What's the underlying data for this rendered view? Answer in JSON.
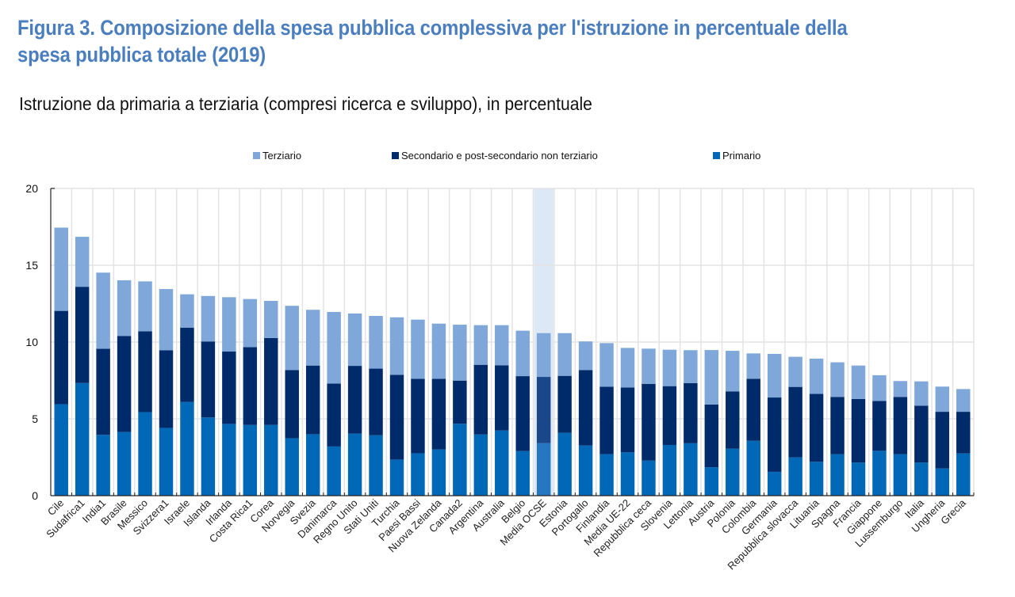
{
  "header": {
    "title": "Figura 3. Composizione della spesa pubblica complessiva per l'istruzione in percentuale della spesa pubblica totale (2019)",
    "subtitle": "Istruzione da primaria a terziaria (compresi ricerca e sviluppo), in percentuale"
  },
  "colors": {
    "title": "#4a7ebf",
    "terziario": "#7fa7d9",
    "secondario": "#002b6b",
    "primario": "#0068b7",
    "highlight_band": "#dce8f5",
    "highlight_secondario": "#1a468a",
    "highlight_primario": "#2477c0",
    "grid": "#e3e3e3"
  },
  "chart_data": {
    "type": "bar",
    "stacked": true,
    "title": "Figura 3. Composizione della spesa pubblica complessiva per l'istruzione in percentuale della spesa pubblica totale (2019)",
    "subtitle": "Istruzione da primaria a terziaria (compresi ricerca e sviluppo), in percentuale",
    "xlabel": "",
    "ylabel": "",
    "ylim": [
      0,
      20
    ],
    "yticks": [
      "0",
      "5",
      "10",
      "15",
      "20"
    ],
    "grid": true,
    "legend": {
      "placement": "top",
      "entries": [
        "Terziario",
        "Secondario e post-secondario non terziario",
        "Primario"
      ]
    },
    "highlighted_category": "Media OCSE",
    "categories": [
      "Cile",
      "Sudafrica1",
      "India1",
      "Brasile",
      "Messico",
      "Svizzera1",
      "Israele",
      "Islanda",
      "Irlanda",
      "Costa Rica1",
      "Corea",
      "Norvegia",
      "Svezia",
      "Danimarca",
      "Regno Unito",
      "Stati Uniti",
      "Turchia",
      "Paesi Bassi",
      "Nuova Zelanda",
      "Canada2",
      "Argentina",
      "Australia",
      "Belgio",
      "Media OCSE",
      "Estonia",
      "Portogallo",
      "Finlandia",
      "Media UE-22",
      "Repubblica ceca",
      "Slovenia",
      "Lettonia",
      "Austria",
      "Polonia",
      "Colombia",
      "Germania",
      "Repubblica slovacca",
      "Lituania",
      "Spagna",
      "Francia",
      "Giappone",
      "Lussemburgo",
      "Italia",
      "Ungheria",
      "Grecia"
    ],
    "series": [
      {
        "name": "Primario",
        "values": [
          5.95,
          7.33,
          3.96,
          4.14,
          5.44,
          4.41,
          6.1,
          5.09,
          4.67,
          4.6,
          4.6,
          3.74,
          4.0,
          3.2,
          4.04,
          3.93,
          2.35,
          2.76,
          3.01,
          4.68,
          3.98,
          4.24,
          2.9,
          3.42,
          4.09,
          3.26,
          2.7,
          2.82,
          2.28,
          3.3,
          3.41,
          1.85,
          3.06,
          3.57,
          1.55,
          2.49,
          2.2,
          2.7,
          2.15,
          2.92,
          2.7,
          2.15,
          1.77,
          2.75
        ]
      },
      {
        "name": "Secondario e post-secondario non terziario",
        "values": [
          6.08,
          6.27,
          5.6,
          6.26,
          5.26,
          5.06,
          4.84,
          4.95,
          4.71,
          5.07,
          5.66,
          4.43,
          4.47,
          4.1,
          4.41,
          4.34,
          5.52,
          4.85,
          4.6,
          2.81,
          4.54,
          4.25,
          4.88,
          4.31,
          3.71,
          4.92,
          4.39,
          4.22,
          5.0,
          3.83,
          3.91,
          4.08,
          3.73,
          4.04,
          4.84,
          4.59,
          4.43,
          3.73,
          4.14,
          3.25,
          3.73,
          3.71,
          3.69,
          2.71
        ]
      },
      {
        "name": "Terziario",
        "values": [
          5.42,
          3.25,
          4.96,
          3.62,
          3.25,
          3.98,
          2.17,
          2.96,
          3.54,
          3.13,
          2.42,
          4.19,
          3.63,
          4.66,
          3.41,
          3.43,
          3.74,
          3.85,
          3.59,
          3.64,
          2.58,
          2.61,
          2.96,
          2.85,
          2.78,
          1.86,
          2.84,
          2.58,
          2.29,
          2.37,
          2.15,
          3.55,
          2.64,
          1.65,
          2.84,
          1.96,
          2.29,
          2.25,
          2.18,
          1.67,
          1.03,
          1.58,
          1.64,
          1.48
        ]
      }
    ]
  }
}
